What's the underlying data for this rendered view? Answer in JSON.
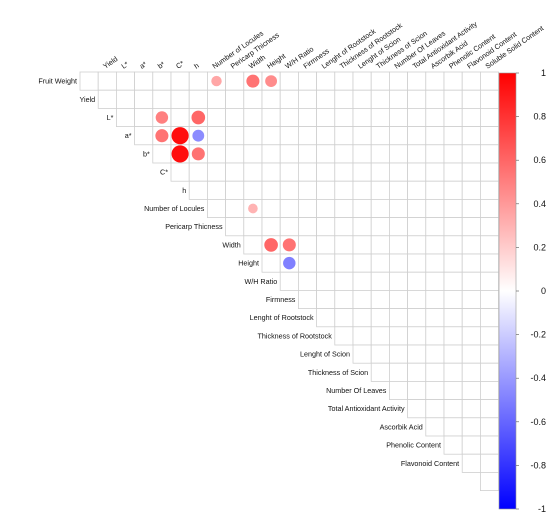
{
  "chart_data": {
    "type": "heatmap",
    "variables": [
      "Fruit Weight",
      "Yield",
      "L*",
      "a*",
      "b*",
      "C*",
      "h",
      "Number of Locules",
      "Pericarp Thicness",
      "Width",
      "Height",
      "W/H Ratio",
      "Firmness",
      "Lenght of Rootstock",
      "Thickness of Rootstock",
      "Lenght of Scion",
      "Thickness of Scion",
      "Number Of Leaves",
      "Total Antioxidant Activity",
      "Ascorbik Acid",
      "Phenolic Content",
      "Flavonoid Content",
      "Soluble Solid Content"
    ],
    "correlations": [
      {
        "row": "Fruit Weight",
        "col": "Number of Locules",
        "value": 0.35
      },
      {
        "row": "Fruit Weight",
        "col": "Width",
        "value": 0.55
      },
      {
        "row": "Fruit Weight",
        "col": "Height",
        "value": 0.45
      },
      {
        "row": "L*",
        "col": "b*",
        "value": 0.5
      },
      {
        "row": "L*",
        "col": "h",
        "value": 0.6
      },
      {
        "row": "a*",
        "col": "b*",
        "value": 0.55
      },
      {
        "row": "a*",
        "col": "C*",
        "value": 0.95
      },
      {
        "row": "a*",
        "col": "h",
        "value": -0.45
      },
      {
        "row": "b*",
        "col": "C*",
        "value": 0.95
      },
      {
        "row": "b*",
        "col": "h",
        "value": 0.55
      },
      {
        "row": "Number of Locules",
        "col": "Width",
        "value": 0.3
      },
      {
        "row": "Width",
        "col": "Height",
        "value": 0.6
      },
      {
        "row": "Width",
        "col": "W/H Ratio",
        "value": 0.55
      },
      {
        "row": "Height",
        "col": "W/H Ratio",
        "value": -0.5
      }
    ],
    "color_scale": {
      "min": -1,
      "max": 1,
      "low": "#0000ff",
      "mid": "#ffffff",
      "high": "#ff0000"
    },
    "colorbar_ticks": [
      "1",
      "0.8",
      "0.6",
      "0.4",
      "0.2",
      "0",
      "-0.2",
      "-0.4",
      "-0.6",
      "-0.8",
      "-1"
    ],
    "layout": "upper-triangle",
    "legend": "right"
  }
}
